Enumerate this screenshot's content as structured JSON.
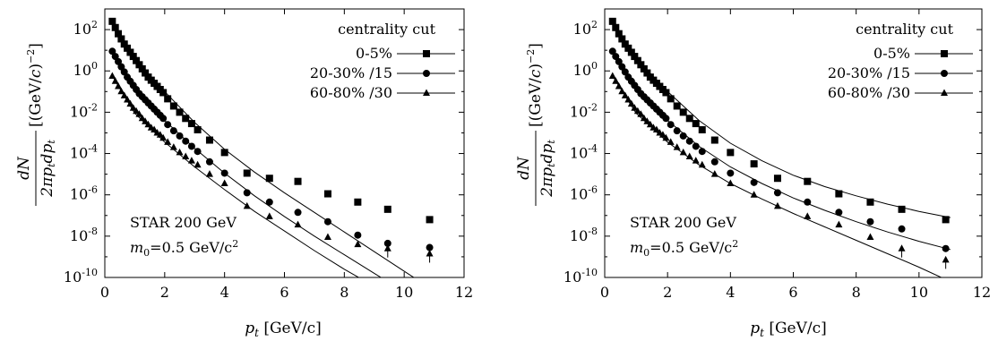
{
  "chart_data": [
    {
      "type": "scatter",
      "xlabel": "p_t [GeV/c]",
      "ylabel": "dN / 2πp_t dp_t [(GeV/c)^-2]",
      "xlim": [
        0,
        12
      ],
      "ylim_exponents": [
        -10,
        3
      ],
      "yscale": "log",
      "xticks": [
        "0",
        "2",
        "4",
        "6",
        "8",
        "10",
        "12"
      ],
      "yticks": [
        "-10",
        "-8",
        "-6",
        "-4",
        "-2",
        "0",
        "2"
      ],
      "legend_title": "centrality cut",
      "legend_position": "top-right",
      "annotation_1": "STAR 200 GeV",
      "annotation_2_prefix": "m",
      "annotation_2_sub": "0",
      "annotation_2_suffix": "=0.5 GeV/c",
      "annotation_2_sup": "2",
      "series": [
        {
          "name": "0-5%",
          "marker": "square",
          "x": [
            0.25,
            0.35,
            0.45,
            0.55,
            0.65,
            0.75,
            0.85,
            0.95,
            1.05,
            1.15,
            1.25,
            1.35,
            1.45,
            1.55,
            1.65,
            1.75,
            1.85,
            1.95,
            2.1,
            2.3,
            2.5,
            2.7,
            2.9,
            3.1,
            3.5,
            4.0,
            4.75,
            5.5,
            6.45,
            7.45,
            8.45,
            9.45,
            10.85
          ],
          "y": [
            2.4,
            2.1,
            1.8,
            1.55,
            1.3,
            1.1,
            0.9,
            0.7,
            0.5,
            0.3,
            0.1,
            -0.1,
            -0.3,
            -0.45,
            -0.6,
            -0.75,
            -0.9,
            -1.05,
            -1.35,
            -1.7,
            -2.0,
            -2.3,
            -2.55,
            -2.85,
            -3.35,
            -3.95,
            -4.95,
            -5.2,
            -5.35,
            -5.95,
            -6.35,
            -6.7,
            -7.2
          ],
          "fit_x": [
            0.25,
            1.0,
            2.0,
            3.0,
            4.0,
            5.0,
            6.0,
            7.0,
            8.0,
            9.0,
            10.0,
            10.85
          ],
          "fit_y": [
            2.4,
            0.6,
            -1.0,
            -2.5,
            -3.8,
            -4.9,
            -5.9,
            -6.85,
            -7.8,
            -8.75,
            -9.7,
            -10.5
          ]
        },
        {
          "name": "20-30% /15",
          "marker": "circle",
          "x": [
            0.25,
            0.35,
            0.45,
            0.55,
            0.65,
            0.75,
            0.85,
            0.95,
            1.05,
            1.15,
            1.25,
            1.35,
            1.45,
            1.55,
            1.65,
            1.75,
            1.85,
            1.95,
            2.1,
            2.3,
            2.5,
            2.7,
            2.9,
            3.1,
            3.5,
            4.0,
            4.75,
            5.5,
            6.45,
            7.45,
            8.45,
            9.45,
            10.85
          ],
          "y": [
            0.95,
            0.7,
            0.45,
            0.2,
            -0.05,
            -0.3,
            -0.5,
            -0.7,
            -0.9,
            -1.1,
            -1.25,
            -1.4,
            -1.55,
            -1.7,
            -1.85,
            -2.0,
            -2.15,
            -2.3,
            -2.6,
            -2.9,
            -3.15,
            -3.4,
            -3.65,
            -3.9,
            -4.4,
            -4.95,
            -5.9,
            -6.35,
            -6.85,
            -7.3,
            -7.95,
            -8.35,
            -8.55
          ],
          "fit_x": [
            0.25,
            1.0,
            2.0,
            3.0,
            4.0,
            5.0,
            6.0,
            7.0,
            8.0,
            9.0,
            10.0,
            10.85
          ],
          "fit_y": [
            0.95,
            -0.9,
            -2.4,
            -3.75,
            -4.95,
            -6.05,
            -7.05,
            -8.0,
            -8.9,
            -9.8,
            -10.7,
            -11.5
          ]
        },
        {
          "name": "60-80% /30",
          "marker": "triangle",
          "x": [
            0.25,
            0.35,
            0.45,
            0.55,
            0.65,
            0.75,
            0.85,
            0.95,
            1.05,
            1.15,
            1.25,
            1.35,
            1.45,
            1.55,
            1.65,
            1.75,
            1.85,
            1.95,
            2.1,
            2.3,
            2.5,
            2.7,
            2.9,
            3.1,
            3.5,
            4.0,
            4.75,
            5.5,
            6.45,
            7.45,
            8.45,
            9.45,
            10.85
          ],
          "y": [
            -0.25,
            -0.5,
            -0.75,
            -1.0,
            -1.2,
            -1.4,
            -1.6,
            -1.8,
            -1.95,
            -2.1,
            -2.3,
            -2.45,
            -2.6,
            -2.75,
            -2.85,
            -3.0,
            -3.1,
            -3.25,
            -3.45,
            -3.7,
            -3.95,
            -4.15,
            -4.35,
            -4.55,
            -5.0,
            -5.45,
            -6.55,
            -7.05,
            -7.45,
            -8.05,
            -8.4,
            -8.6,
            -8.85
          ],
          "fit_x": [
            0.25,
            1.0,
            2.0,
            3.0,
            4.0,
            5.0,
            6.0,
            7.0,
            8.0,
            8.6
          ],
          "fit_y": [
            -0.25,
            -2.05,
            -3.45,
            -4.65,
            -5.75,
            -6.8,
            -7.75,
            -8.7,
            -9.6,
            -10.1
          ]
        }
      ]
    },
    {
      "type": "scatter",
      "xlabel": "p_t [GeV/c]",
      "ylabel": "dN / 2πp_t dp_t [(GeV/c)^-2]",
      "xlim": [
        0,
        12
      ],
      "ylim_exponents": [
        -10,
        3
      ],
      "yscale": "log",
      "xticks": [
        "0",
        "2",
        "4",
        "6",
        "8",
        "10",
        "12"
      ],
      "yticks": [
        "-10",
        "-8",
        "-6",
        "-4",
        "-2",
        "0",
        "2"
      ],
      "legend_title": "centrality cut",
      "legend_position": "top-right",
      "annotation_1": "STAR 200 GeV",
      "annotation_2_prefix": "m",
      "annotation_2_sub": "0",
      "annotation_2_suffix": "=0.5 GeV/c",
      "annotation_2_sup": "2",
      "series": [
        {
          "name": "0-5%",
          "marker": "square",
          "x": [
            0.25,
            0.35,
            0.45,
            0.55,
            0.65,
            0.75,
            0.85,
            0.95,
            1.05,
            1.15,
            1.25,
            1.35,
            1.45,
            1.55,
            1.65,
            1.75,
            1.85,
            1.95,
            2.1,
            2.3,
            2.5,
            2.7,
            2.9,
            3.1,
            3.5,
            4.0,
            4.75,
            5.5,
            6.45,
            7.45,
            8.45,
            9.45,
            10.85
          ],
          "y": [
            2.4,
            2.1,
            1.8,
            1.55,
            1.3,
            1.1,
            0.9,
            0.7,
            0.5,
            0.3,
            0.1,
            -0.1,
            -0.3,
            -0.45,
            -0.6,
            -0.75,
            -0.9,
            -1.05,
            -1.35,
            -1.7,
            -2.0,
            -2.3,
            -2.55,
            -2.85,
            -3.35,
            -3.95,
            -4.5,
            -5.2,
            -5.35,
            -5.95,
            -6.35,
            -6.7,
            -7.2
          ],
          "fit_x": [
            0.25,
            1.0,
            2.0,
            3.0,
            4.0,
            5.0,
            6.0,
            7.0,
            8.0,
            9.0,
            10.0,
            11.0
          ],
          "fit_y": [
            2.4,
            0.6,
            -1.0,
            -2.4,
            -3.5,
            -4.35,
            -5.05,
            -5.6,
            -6.05,
            -6.45,
            -6.8,
            -7.1
          ]
        },
        {
          "name": "20-30% /15",
          "marker": "circle",
          "x": [
            0.25,
            0.35,
            0.45,
            0.55,
            0.65,
            0.75,
            0.85,
            0.95,
            1.05,
            1.15,
            1.25,
            1.35,
            1.45,
            1.55,
            1.65,
            1.75,
            1.85,
            1.95,
            2.1,
            2.3,
            2.5,
            2.7,
            2.9,
            3.1,
            3.5,
            4.0,
            4.75,
            5.5,
            6.45,
            7.45,
            8.45,
            9.45,
            10.85
          ],
          "y": [
            0.95,
            0.7,
            0.45,
            0.2,
            -0.05,
            -0.3,
            -0.5,
            -0.7,
            -0.9,
            -1.1,
            -1.25,
            -1.4,
            -1.55,
            -1.7,
            -1.85,
            -2.0,
            -2.15,
            -2.3,
            -2.6,
            -2.9,
            -3.15,
            -3.4,
            -3.65,
            -3.9,
            -4.4,
            -4.95,
            -5.4,
            -5.9,
            -6.35,
            -6.85,
            -7.3,
            -7.65,
            -8.6
          ],
          "fit_x": [
            0.25,
            1.0,
            2.0,
            3.0,
            4.0,
            5.0,
            6.0,
            7.0,
            8.0,
            9.0,
            10.0,
            11.0
          ],
          "fit_y": [
            0.95,
            -0.9,
            -2.4,
            -3.65,
            -4.65,
            -5.45,
            -6.15,
            -6.75,
            -7.3,
            -7.8,
            -8.25,
            -8.65
          ]
        },
        {
          "name": "60-80% /30",
          "marker": "triangle",
          "x": [
            0.25,
            0.35,
            0.45,
            0.55,
            0.65,
            0.75,
            0.85,
            0.95,
            1.05,
            1.15,
            1.25,
            1.35,
            1.45,
            1.55,
            1.65,
            1.75,
            1.85,
            1.95,
            2.1,
            2.3,
            2.5,
            2.7,
            2.9,
            3.1,
            3.5,
            4.0,
            4.75,
            5.5,
            6.45,
            7.45,
            8.45,
            9.45,
            10.85
          ],
          "y": [
            -0.25,
            -0.5,
            -0.75,
            -1.0,
            -1.2,
            -1.4,
            -1.6,
            -1.8,
            -1.95,
            -2.1,
            -2.3,
            -2.45,
            -2.6,
            -2.75,
            -2.85,
            -3.0,
            -3.1,
            -3.25,
            -3.45,
            -3.7,
            -3.95,
            -4.15,
            -4.35,
            -4.55,
            -5.0,
            -5.45,
            -6.0,
            -6.55,
            -7.05,
            -7.45,
            -8.05,
            -8.6,
            -9.15
          ],
          "fit_x": [
            0.25,
            1.0,
            2.0,
            3.0,
            4.0,
            5.0,
            6.0,
            7.0,
            8.0,
            9.0,
            10.0,
            10.85
          ],
          "fit_y": [
            -0.25,
            -2.05,
            -3.45,
            -4.55,
            -5.45,
            -6.2,
            -6.9,
            -7.55,
            -8.2,
            -8.85,
            -9.5,
            -10.1
          ]
        }
      ]
    }
  ]
}
